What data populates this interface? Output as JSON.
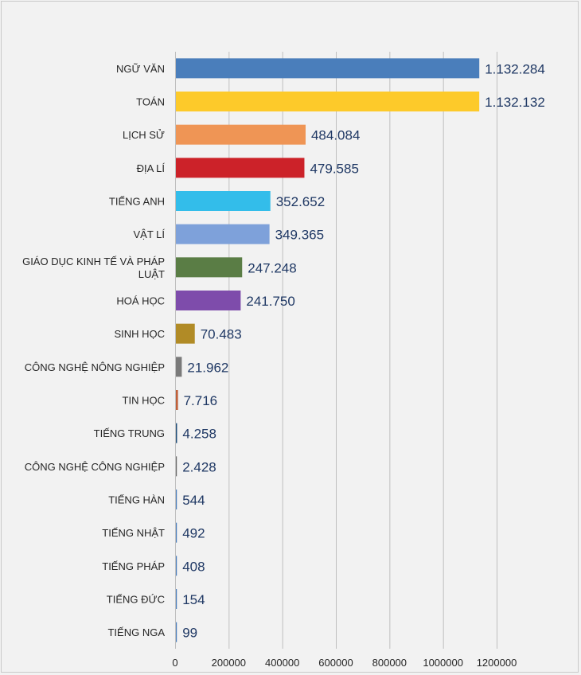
{
  "chart_data": {
    "type": "bar",
    "orientation": "horizontal",
    "title": "",
    "xlabel": "",
    "ylabel": "",
    "xlim": [
      0,
      1200000
    ],
    "x_ticks": [
      0,
      200000,
      400000,
      600000,
      800000,
      1000000,
      1200000
    ],
    "x_tick_labels": [
      "0",
      "200000",
      "400000",
      "600000",
      "800000",
      "1000000",
      "1200000"
    ],
    "grid": "vertical",
    "legend": "none",
    "categories": [
      "NGỮ VĂN",
      "TOÁN",
      "LỊCH SỬ",
      "ĐỊA LÍ",
      "TIẾNG ANH",
      "VẬT LÍ",
      "GIÁO DỤC KINH TẾ VÀ PHÁP LUẬT",
      "HOÁ HỌC",
      "SINH HỌC",
      "CÔNG NGHỆ NÔNG NGHIỆP",
      "TIN HỌC",
      "TIẾNG TRUNG",
      "CÔNG NGHỆ CÔNG NGHIỆP",
      "TIẾNG HÀN",
      "TIẾNG NHẬT",
      "TIẾNG PHÁP",
      "TIẾNG ĐỨC",
      "TIẾNG NGA"
    ],
    "category_lines": [
      [
        "NGỮ VĂN"
      ],
      [
        "TOÁN"
      ],
      [
        "LỊCH SỬ"
      ],
      [
        "ĐỊA LÍ"
      ],
      [
        "TIẾNG ANH"
      ],
      [
        "VẬT LÍ"
      ],
      [
        "GIÁO DỤC KINH TẾ VÀ PHÁP",
        "LUẬT"
      ],
      [
        "HOÁ HỌC"
      ],
      [
        "SINH HỌC"
      ],
      [
        "CÔNG NGHỆ NÔNG NGHIỆP"
      ],
      [
        "TIN HỌC"
      ],
      [
        "TIẾNG TRUNG"
      ],
      [
        "CÔNG NGHỆ CÔNG NGHIỆP"
      ],
      [
        "TIẾNG HÀN"
      ],
      [
        "TIẾNG NHẬT"
      ],
      [
        "TIẾNG PHÁP"
      ],
      [
        "TIẾNG ĐỨC"
      ],
      [
        "TIẾNG NGA"
      ]
    ],
    "values": [
      1132284,
      1132132,
      484084,
      479585,
      352652,
      349365,
      247248,
      241750,
      70483,
      21962,
      7716,
      4258,
      2428,
      544,
      492,
      408,
      154,
      99
    ],
    "value_labels": [
      "1.132.284",
      "1.132.132",
      "484.084",
      "479.585",
      "352.652",
      "349.365",
      "247.248",
      "241.750",
      "70.483",
      "21.962",
      "7.716",
      "4.258",
      "2.428",
      "544",
      "492",
      "408",
      "154",
      "99"
    ],
    "colors": [
      "#4a7ebb",
      "#fdca2a",
      "#ef9555",
      "#cc2229",
      "#33bdea",
      "#7ea1da",
      "#5a7d45",
      "#7e4cab",
      "#b18b26",
      "#7a7a7a",
      "#c0603a",
      "#1f4e79",
      "#6a6a6a",
      "#4a7ebb",
      "#4a7ebb",
      "#4a7ebb",
      "#4a7ebb",
      "#4a7ebb"
    ]
  }
}
